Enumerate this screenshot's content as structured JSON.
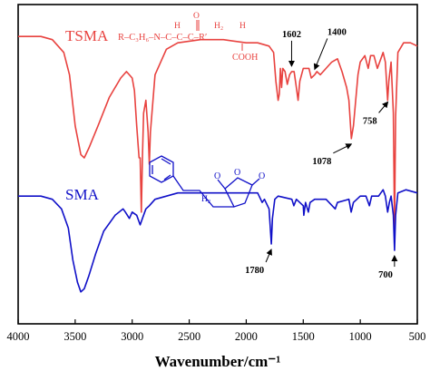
{
  "chart_data": {
    "type": "line",
    "xlabel": "Wavenumber/cm⁻¹",
    "xlim": [
      4000,
      500
    ],
    "x_ticks": [
      4000,
      3500,
      3000,
      2500,
      2000,
      1500,
      1000,
      500
    ],
    "y_ticks_visible": false,
    "grid": false,
    "series": [
      {
        "name": "TSMA",
        "color": "#e8423f",
        "points": [
          [
            4000,
            0.9
          ],
          [
            3800,
            0.9
          ],
          [
            3700,
            0.89
          ],
          [
            3600,
            0.85
          ],
          [
            3550,
            0.78
          ],
          [
            3500,
            0.62
          ],
          [
            3450,
            0.53
          ],
          [
            3420,
            0.52
          ],
          [
            3380,
            0.55
          ],
          [
            3300,
            0.62
          ],
          [
            3200,
            0.71
          ],
          [
            3100,
            0.77
          ],
          [
            3050,
            0.79
          ],
          [
            3000,
            0.77
          ],
          [
            2980,
            0.73
          ],
          [
            2960,
            0.62
          ],
          [
            2940,
            0.52
          ],
          [
            2930,
            0.52
          ],
          [
            2920,
            0.35
          ],
          [
            2910,
            0.52
          ],
          [
            2900,
            0.66
          ],
          [
            2880,
            0.7
          ],
          [
            2860,
            0.6
          ],
          [
            2850,
            0.5
          ],
          [
            2840,
            0.6
          ],
          [
            2800,
            0.78
          ],
          [
            2700,
            0.86
          ],
          [
            2600,
            0.88
          ],
          [
            2400,
            0.89
          ],
          [
            2200,
            0.89
          ],
          [
            2000,
            0.88
          ],
          [
            1900,
            0.88
          ],
          [
            1800,
            0.87
          ],
          [
            1760,
            0.85
          ],
          [
            1740,
            0.76
          ],
          [
            1720,
            0.7
          ],
          [
            1710,
            0.72
          ],
          [
            1700,
            0.8
          ],
          [
            1690,
            0.74
          ],
          [
            1680,
            0.8
          ],
          [
            1660,
            0.79
          ],
          [
            1640,
            0.75
          ],
          [
            1620,
            0.78
          ],
          [
            1602,
            0.79
          ],
          [
            1580,
            0.79
          ],
          [
            1560,
            0.74
          ],
          [
            1545,
            0.7
          ],
          [
            1530,
            0.76
          ],
          [
            1500,
            0.8
          ],
          [
            1450,
            0.8
          ],
          [
            1430,
            0.77
          ],
          [
            1400,
            0.78
          ],
          [
            1380,
            0.79
          ],
          [
            1350,
            0.78
          ],
          [
            1300,
            0.8
          ],
          [
            1250,
            0.82
          ],
          [
            1200,
            0.83
          ],
          [
            1160,
            0.79
          ],
          [
            1120,
            0.74
          ],
          [
            1100,
            0.7
          ],
          [
            1078,
            0.58
          ],
          [
            1060,
            0.62
          ],
          [
            1040,
            0.7
          ],
          [
            1020,
            0.78
          ],
          [
            1000,
            0.82
          ],
          [
            960,
            0.84
          ],
          [
            930,
            0.8
          ],
          [
            910,
            0.84
          ],
          [
            880,
            0.84
          ],
          [
            850,
            0.8
          ],
          [
            820,
            0.83
          ],
          [
            800,
            0.85
          ],
          [
            780,
            0.82
          ],
          [
            760,
            0.7
          ],
          [
            750,
            0.76
          ],
          [
            730,
            0.82
          ],
          [
            710,
            0.66
          ],
          [
            700,
            0.3
          ],
          [
            690,
            0.65
          ],
          [
            670,
            0.85
          ],
          [
            620,
            0.88
          ],
          [
            560,
            0.88
          ],
          [
            500,
            0.87
          ]
        ]
      },
      {
        "name": "SMA",
        "color": "#1010c8",
        "points": [
          [
            4000,
            0.4
          ],
          [
            3800,
            0.4
          ],
          [
            3700,
            0.39
          ],
          [
            3620,
            0.36
          ],
          [
            3560,
            0.3
          ],
          [
            3520,
            0.2
          ],
          [
            3480,
            0.13
          ],
          [
            3450,
            0.1
          ],
          [
            3420,
            0.11
          ],
          [
            3380,
            0.15
          ],
          [
            3320,
            0.22
          ],
          [
            3250,
            0.29
          ],
          [
            3150,
            0.34
          ],
          [
            3080,
            0.36
          ],
          [
            3060,
            0.35
          ],
          [
            3025,
            0.33
          ],
          [
            3000,
            0.35
          ],
          [
            2960,
            0.34
          ],
          [
            2930,
            0.31
          ],
          [
            2910,
            0.33
          ],
          [
            2880,
            0.36
          ],
          [
            2850,
            0.37
          ],
          [
            2800,
            0.39
          ],
          [
            2600,
            0.41
          ],
          [
            2400,
            0.41
          ],
          [
            2000,
            0.41
          ],
          [
            1900,
            0.41
          ],
          [
            1860,
            0.38
          ],
          [
            1840,
            0.39
          ],
          [
            1800,
            0.36
          ],
          [
            1780,
            0.25
          ],
          [
            1770,
            0.33
          ],
          [
            1750,
            0.39
          ],
          [
            1720,
            0.4
          ],
          [
            1600,
            0.39
          ],
          [
            1583,
            0.37
          ],
          [
            1560,
            0.39
          ],
          [
            1500,
            0.37
          ],
          [
            1495,
            0.34
          ],
          [
            1480,
            0.38
          ],
          [
            1455,
            0.35
          ],
          [
            1440,
            0.38
          ],
          [
            1400,
            0.39
          ],
          [
            1300,
            0.39
          ],
          [
            1220,
            0.36
          ],
          [
            1200,
            0.38
          ],
          [
            1100,
            0.39
          ],
          [
            1080,
            0.35
          ],
          [
            1060,
            0.38
          ],
          [
            1030,
            0.39
          ],
          [
            1000,
            0.4
          ],
          [
            950,
            0.4
          ],
          [
            920,
            0.37
          ],
          [
            900,
            0.4
          ],
          [
            840,
            0.4
          ],
          [
            800,
            0.42
          ],
          [
            780,
            0.4
          ],
          [
            760,
            0.35
          ],
          [
            745,
            0.38
          ],
          [
            730,
            0.4
          ],
          [
            710,
            0.34
          ],
          [
            700,
            0.23
          ],
          [
            690,
            0.34
          ],
          [
            670,
            0.41
          ],
          [
            600,
            0.42
          ],
          [
            500,
            0.41
          ]
        ]
      }
    ],
    "annotations": [
      {
        "text": "1602",
        "x": 1602,
        "series": "TSMA"
      },
      {
        "text": "1400",
        "x": 1400,
        "series": "TSMA"
      },
      {
        "text": "758",
        "x": 758,
        "series": "TSMA"
      },
      {
        "text": "1078",
        "x": 1078,
        "series": "TSMA"
      },
      {
        "text": "1780",
        "x": 1780,
        "series": "SMA"
      },
      {
        "text": "700",
        "x": 700,
        "series": "SMA"
      }
    ],
    "structure_labels": [
      {
        "text": "R–C₃H₆–N–C–C–C–R′",
        "series": "TSMA"
      },
      {
        "text": "H",
        "series": "TSMA"
      },
      {
        "text": "O",
        "series": "TSMA"
      },
      {
        "text": "H₂",
        "series": "TSMA"
      },
      {
        "text": "H",
        "series": "TSMA"
      },
      {
        "text": "COOH",
        "series": "TSMA"
      },
      {
        "text": "H₂",
        "series": "SMA"
      }
    ]
  }
}
